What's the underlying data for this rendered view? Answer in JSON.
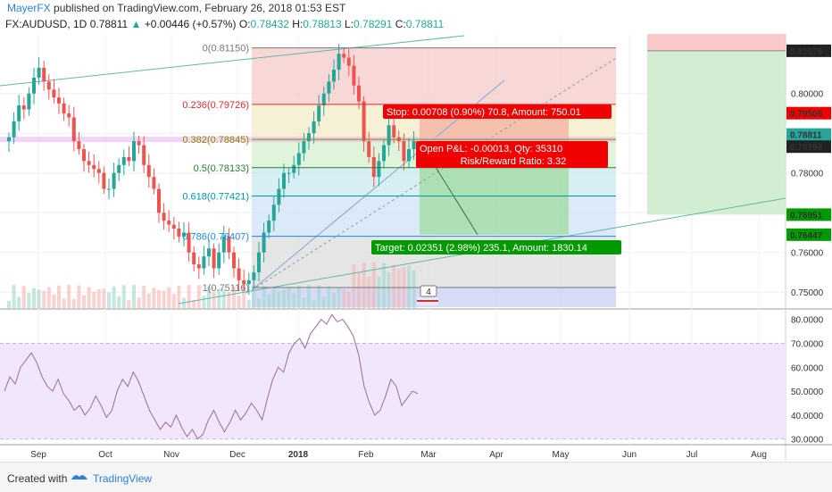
{
  "header": {
    "author": "MayerFX",
    "published": "published on TradingView.com, February 26, 2018 01:53 EST"
  },
  "symbol": {
    "name": "FX:AUDUSD, 1D",
    "price": "0.78811",
    "arrow": "▲",
    "change": "+0.00446 (+0.57%)",
    "o_label": "O:",
    "o": "0.78432",
    "h_label": "H:",
    "h": "0.78813",
    "l_label": "L:",
    "l": "0.78291",
    "c_label": "C:",
    "c": "0.78811"
  },
  "footer": {
    "created": "Created with",
    "brand": "TradingView"
  },
  "colors": {
    "up": "#26a69a",
    "down": "#ef5350",
    "stop": "#f00000",
    "target": "#009900",
    "rsi": "#9c6b9a",
    "rsi_band": "#f1e6fb"
  },
  "chart_data": [
    {
      "type": "candlestick",
      "title": "FX:AUDUSD, 1D",
      "x_tick_labels": [
        "Sep",
        "Oct",
        "Nov",
        "Dec",
        "2018",
        "Feb",
        "Mar",
        "Apr",
        "May",
        "Jun",
        "Jul",
        "Aug"
      ],
      "y_tick_labels": [
        "0.75000",
        "0.76000",
        "0.77000",
        "0.78000",
        "0.79000",
        "0.80000"
      ],
      "ylim": [
        0.746,
        0.815
      ],
      "series_close": [
        0.789,
        0.793,
        0.797,
        0.796,
        0.8,
        0.804,
        0.8065,
        0.803,
        0.801,
        0.799,
        0.7975,
        0.795,
        0.794,
        0.788,
        0.786,
        0.783,
        0.782,
        0.781,
        0.78,
        0.776,
        0.776,
        0.78,
        0.782,
        0.784,
        0.783,
        0.788,
        0.787,
        0.782,
        0.779,
        0.776,
        0.77,
        0.768,
        0.767,
        0.766,
        0.764,
        0.765,
        0.76,
        0.757,
        0.756,
        0.759,
        0.761,
        0.756,
        0.76,
        0.764,
        0.76,
        0.756,
        0.753,
        0.752,
        0.753,
        0.755,
        0.76,
        0.765,
        0.768,
        0.772,
        0.776,
        0.78,
        0.78,
        0.782,
        0.785,
        0.788,
        0.79,
        0.793,
        0.797,
        0.8,
        0.803,
        0.806,
        0.81,
        0.809,
        0.807,
        0.802,
        0.798,
        0.788,
        0.784,
        0.779,
        0.783,
        0.787,
        0.792,
        0.789,
        0.788,
        0.783,
        0.786,
        0.7881
      ],
      "last_price": 0.78811,
      "price_labels": [
        {
          "text": "0.81076",
          "value": 0.81076,
          "style": "dark"
        },
        {
          "text": "0.79506",
          "value": 0.79506,
          "style": "stop"
        },
        {
          "text": "0.78811",
          "value": 0.78811,
          "style": "up"
        },
        {
          "text": "0.78798",
          "value": 0.78798,
          "style": "dark"
        },
        {
          "text": "0.76951",
          "value": 0.76951,
          "style": "target"
        },
        {
          "text": "0.76447",
          "value": 0.76447,
          "style": "target"
        }
      ]
    },
    {
      "type": "fibonacci",
      "levels": [
        {
          "label": "0(0.81150)",
          "value": 0.8115,
          "color": "#787878"
        },
        {
          "label": "0.236(0.79726)",
          "value": 0.79726,
          "color": "#d32f2f"
        },
        {
          "label": "0.382(0.78845)",
          "value": 0.78845,
          "color": "#8a8a00"
        },
        {
          "label": "0.5(0.78133)",
          "value": 0.78133,
          "color": "#2e7d32"
        },
        {
          "label": "0.618(0.77421)",
          "value": 0.77421,
          "color": "#0097a7"
        },
        {
          "label": "0.786(0.76407)",
          "value": 0.76407,
          "color": "#1e88e5"
        },
        {
          "label": "1(0.75116)",
          "value": 0.75116,
          "color": "#787878"
        }
      ]
    },
    {
      "type": "position",
      "stop_label": "Stop: 0.00708 (0.90%) 70.8, Amount: 750.01",
      "open_pnl_label": "Open P&L: -0.00013, Qty: 35310",
      "risk_reward_label": "Risk/Reward Ratio: 3.32",
      "target_label": "Target: 0.02351 (2.98%) 235.1, Amount: 1830.14",
      "entry": 0.78798,
      "stop": 0.79506,
      "target": 0.76447,
      "event_count": "4"
    },
    {
      "type": "line",
      "name": "RSI",
      "ylim": [
        28,
        84
      ],
      "y_tick_labels": [
        "30.0000",
        "40.0000",
        "50.0000",
        "60.0000",
        "70.0000",
        "80.0000"
      ],
      "band": [
        30,
        70
      ],
      "values": [
        50,
        56,
        53,
        60,
        63,
        66,
        62,
        56,
        52,
        50,
        55,
        49,
        46,
        42,
        44,
        40,
        43,
        48,
        44,
        39,
        42,
        50,
        55,
        52,
        58,
        54,
        48,
        42,
        38,
        34,
        37,
        35,
        40,
        35,
        31,
        34,
        30,
        32,
        38,
        42,
        37,
        33,
        37,
        42,
        38,
        41,
        45,
        42,
        38,
        47,
        55,
        60,
        58,
        66,
        70,
        72,
        68,
        74,
        77,
        80,
        78,
        82,
        79,
        80,
        77,
        73,
        65,
        52,
        45,
        40,
        42,
        48,
        55,
        52,
        44,
        47,
        50,
        49
      ]
    }
  ]
}
